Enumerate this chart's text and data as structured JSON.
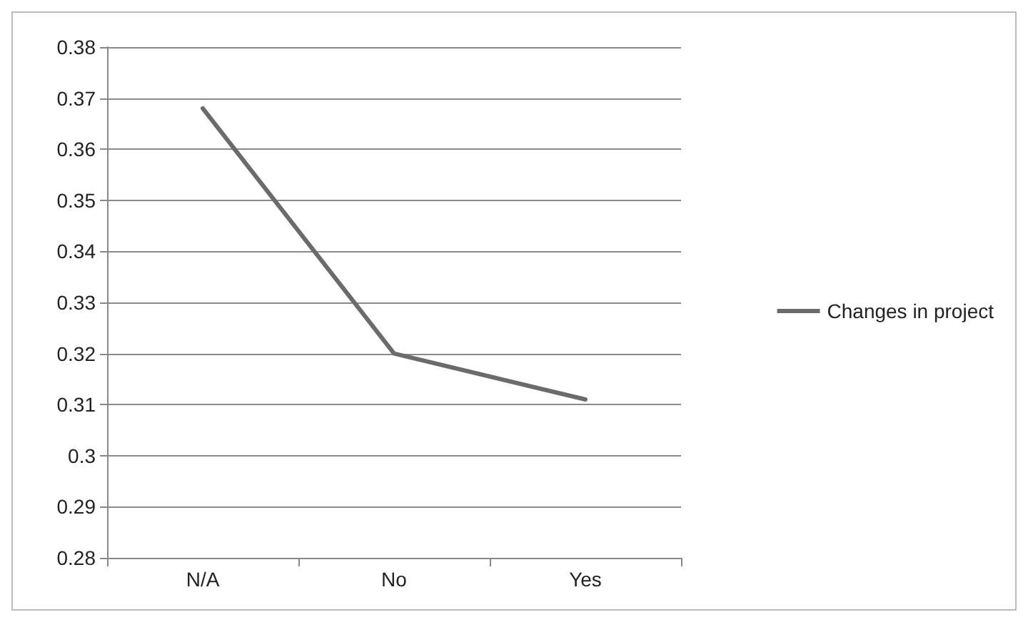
{
  "chart_data": {
    "type": "line",
    "categories": [
      "N/A",
      "No",
      "Yes"
    ],
    "series": [
      {
        "name": "Changes in project",
        "color": "#6b6b6b",
        "values": [
          0.368,
          0.32,
          0.311
        ]
      }
    ],
    "ylim": [
      0.28,
      0.38
    ],
    "yticks": [
      0.28,
      0.29,
      0.3,
      0.31,
      0.32,
      0.33,
      0.34,
      0.35,
      0.36,
      0.37,
      0.38
    ],
    "grid": "y",
    "legend": "right",
    "marker": "none"
  }
}
